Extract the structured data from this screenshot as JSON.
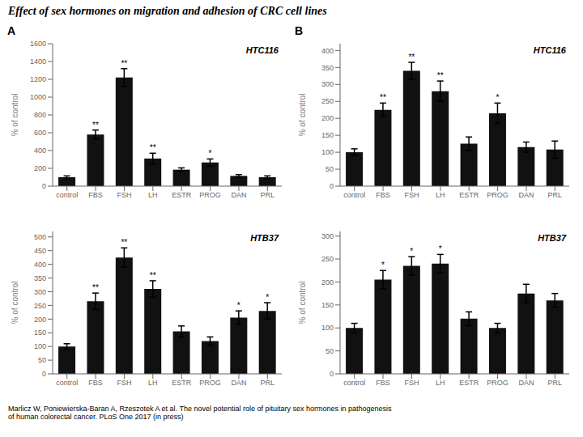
{
  "title": "Effect of sex hormones on migration and adhesion of CRC cell lines",
  "annotations": [
    "Marlicz W, Poniewierska-Baran A, Rzeszotek A et al.  The novel potential role of pituitary sex hormones in pathogenesis\nof human colorectal cancer. PLoS One 2017 (in press)"
  ],
  "chart_data": [
    {
      "type": "bar",
      "title": "A",
      "annotations": [
        "HTC116"
      ],
      "categories": [
        "control",
        "FBS",
        "FSH",
        "LH",
        "ESTR",
        "PROG",
        "DAN",
        "PRL"
      ],
      "values": [
        100,
        580,
        1220,
        310,
        185,
        265,
        115,
        100
      ],
      "errors": [
        15,
        50,
        100,
        60,
        20,
        40,
        15,
        15
      ],
      "significance": [
        null,
        "**",
        "**",
        "**",
        null,
        "*",
        null,
        null
      ],
      "ylabel": "% of control",
      "ylim": [
        0,
        1600
      ],
      "yticks": [
        0,
        200,
        400,
        600,
        800,
        1000,
        1200,
        1400,
        1600
      ],
      "color": "#111111",
      "grid": false
    },
    {
      "type": "bar",
      "title": "B",
      "annotations": [
        "HTC116"
      ],
      "categories": [
        "control",
        "FBS",
        "FSH",
        "LH",
        "ESTR",
        "PROG",
        "DAN",
        "PRL"
      ],
      "values": [
        100,
        225,
        340,
        280,
        125,
        215,
        115,
        108
      ],
      "errors": [
        10,
        20,
        25,
        30,
        20,
        30,
        15,
        25
      ],
      "significance": [
        null,
        "**",
        "**",
        "**",
        null,
        "*",
        null,
        null
      ],
      "ylabel": "% of control",
      "ylim": [
        0,
        420
      ],
      "yticks": [
        0,
        50,
        100,
        150,
        200,
        250,
        300,
        350,
        400
      ],
      "color": "#111111",
      "grid": false
    },
    {
      "type": "bar",
      "annotations": [
        "HTB37"
      ],
      "categories": [
        "control",
        "FBS",
        "FSH",
        "LH",
        "ESTR",
        "PROG",
        "DAN",
        "PRL"
      ],
      "values": [
        100,
        265,
        425,
        310,
        155,
        120,
        205,
        230
      ],
      "errors": [
        10,
        30,
        35,
        30,
        20,
        15,
        25,
        30
      ],
      "significance": [
        null,
        "**",
        "**",
        "**",
        null,
        null,
        "*",
        "*"
      ],
      "ylabel": "% of control",
      "ylim": [
        0,
        520
      ],
      "yticks": [
        0,
        50,
        100,
        150,
        200,
        250,
        300,
        350,
        400,
        450,
        500
      ],
      "color": "#111111",
      "grid": false
    },
    {
      "type": "bar",
      "annotations": [
        "HTB37"
      ],
      "categories": [
        "control",
        "FBS",
        "FSH",
        "LH",
        "ESTR",
        "PROG",
        "DAN",
        "PRL"
      ],
      "values": [
        100,
        205,
        235,
        240,
        120,
        100,
        175,
        160
      ],
      "errors": [
        10,
        20,
        20,
        20,
        15,
        10,
        20,
        15
      ],
      "significance": [
        null,
        "*",
        "*",
        "*",
        null,
        null,
        null,
        null
      ],
      "ylabel": "% of control",
      "ylim": [
        0,
        310
      ],
      "yticks": [
        0,
        50,
        100,
        150,
        200,
        250,
        300
      ],
      "color": "#111111",
      "grid": false
    }
  ]
}
